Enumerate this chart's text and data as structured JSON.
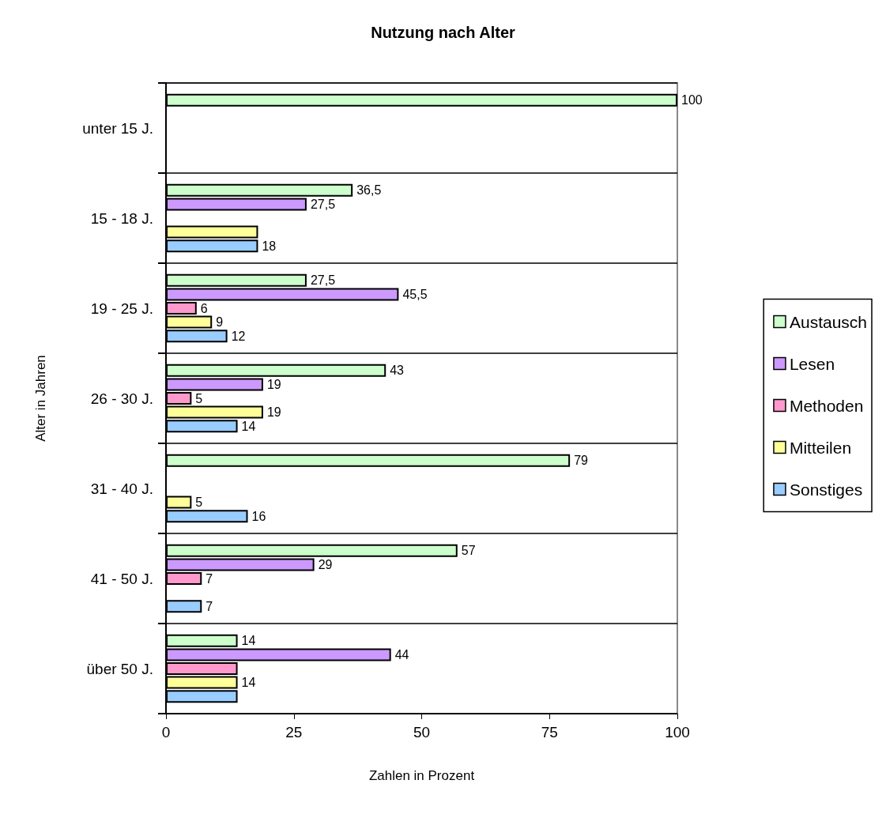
{
  "chart_data": {
    "type": "bar",
    "orientation": "horizontal",
    "title": "Nutzung nach Alter",
    "xlabel": "Zahlen in Prozent",
    "ylabel": "Alter in Jahren",
    "categories": [
      "unter 15 J.",
      "15 - 18 J.",
      "19 - 25 J.",
      "26 - 30 J.",
      "31 - 40 J.",
      "41 - 50 J.",
      "über 50 J."
    ],
    "series": [
      {
        "name": "Austausch",
        "color": "#ccffcc",
        "values": [
          100,
          36.5,
          27.5,
          43,
          79,
          57,
          14
        ],
        "value_labels": [
          "100",
          "36,5",
          "27,5",
          "43",
          "79",
          "57",
          "14"
        ]
      },
      {
        "name": "Lesen",
        "color": "#cc99ff",
        "values": [
          null,
          27.5,
          45.5,
          19,
          null,
          29,
          44
        ],
        "value_labels": [
          null,
          "27,5",
          "45,5",
          "19",
          null,
          "29",
          "44"
        ]
      },
      {
        "name": "Methoden",
        "color": "#ff99cc",
        "values": [
          null,
          null,
          6,
          5,
          null,
          7,
          14
        ],
        "value_labels": [
          null,
          null,
          "6",
          "5",
          null,
          "7",
          null
        ]
      },
      {
        "name": "Mitteilen",
        "color": "#ffff99",
        "values": [
          null,
          18,
          9,
          19,
          5,
          null,
          14
        ],
        "value_labels": [
          null,
          null,
          "9",
          "19",
          "5",
          null,
          "14"
        ]
      },
      {
        "name": "Sonstiges",
        "color": "#99ccff",
        "values": [
          null,
          18,
          12,
          14,
          16,
          7,
          14
        ],
        "value_labels": [
          null,
          "18",
          "12",
          "14",
          "16",
          "7",
          null
        ]
      }
    ],
    "xlim": [
      0,
      100
    ],
    "xticks": [
      0,
      25,
      50,
      75,
      100
    ],
    "grid": "y",
    "legend": "right"
  }
}
